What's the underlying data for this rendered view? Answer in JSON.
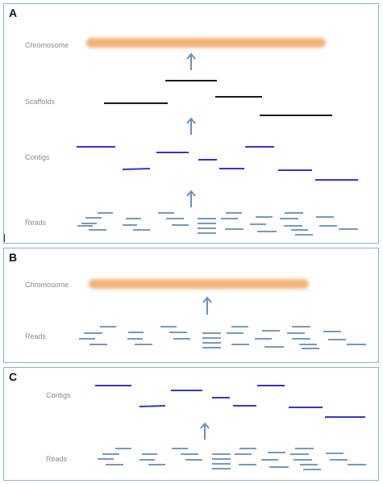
{
  "panels": [
    {
      "letter": "A",
      "labels": {
        "chromosome": "Chromosome",
        "scaffolds": "Scaffolds",
        "contigs": "Contigs",
        "reads": "Reads"
      }
    },
    {
      "letter": "B",
      "labels": {
        "chromosome": "Chromosome",
        "reads": "Reads"
      }
    },
    {
      "letter": "C",
      "labels": {
        "contigs": "Contigs",
        "reads": "Reads"
      }
    }
  ],
  "colors": {
    "panel_border": "#8fb0d0",
    "chromosome_bar": "#f0b478",
    "scaffold_line": "#1a1a1a",
    "contig_line": "#3535c8",
    "read_line": "#7a98b8",
    "arrow": "#6a8fc0",
    "label_text": "#8a8a8a"
  }
}
